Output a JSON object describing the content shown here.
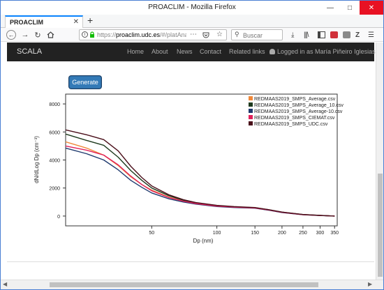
{
  "browser": {
    "window_title": "PROACLIM - Mozilla Firefox",
    "tab_title": "PROACLIM",
    "url_domain": "proaclim.udc.es",
    "url_prefix": "https://",
    "url_path": "/#/platAnalizar/",
    "search_placeholder": "Buscar"
  },
  "site": {
    "brand": "SCALA",
    "nav": [
      "Home",
      "About",
      "News",
      "Contact",
      "Related links"
    ],
    "user_label": "Logged in as María Piñeiro Iglesias"
  },
  "generate_label": "Generate",
  "chart_data": {
    "type": "line",
    "xlabel": "Dp (nm)",
    "ylabel": "dN/dLog Dp (cm⁻³)",
    "x_scale": "log",
    "x_ticks": [
      50,
      100,
      150,
      200,
      250,
      300,
      350
    ],
    "xlim": [
      20,
      360
    ],
    "y_ticks": [
      0,
      2000,
      4000,
      6000,
      8000
    ],
    "ylim": [
      -700,
      8700
    ],
    "grid": false,
    "legend_position": "top-right",
    "x": [
      20,
      25,
      30,
      35,
      40,
      45,
      50,
      60,
      70,
      80,
      100,
      120,
      150,
      175,
      200,
      250,
      300,
      350
    ],
    "series": [
      {
        "name": "REDMAAS2019_SMPS_Average.csv",
        "color": "#f0883a",
        "values": [
          5300,
          4850,
          4350,
          3600,
          2800,
          2250,
          1850,
          1350,
          1080,
          900,
          720,
          640,
          580,
          420,
          260,
          100,
          40,
          0
        ]
      },
      {
        "name": "REDMAAS2019_SMPS_Average_10.csv",
        "color": "#1e3a1e",
        "values": [
          5850,
          5400,
          5050,
          4200,
          3250,
          2550,
          2000,
          1450,
          1130,
          930,
          740,
          660,
          600,
          440,
          280,
          110,
          45,
          0
        ]
      },
      {
        "name": "REDMAAS2019_SMPS_Average-10.csv",
        "color": "#1f3a6e",
        "values": [
          4850,
          4450,
          4000,
          3300,
          2550,
          2050,
          1650,
          1230,
          1000,
          850,
          680,
          610,
          560,
          410,
          250,
          95,
          35,
          0
        ]
      },
      {
        "name": "REDMAAS2019_SMPS_CIEMAT.csv",
        "color": "#e0205a",
        "values": [
          5000,
          4700,
          4350,
          3650,
          2850,
          2250,
          1800,
          1320,
          1060,
          890,
          710,
          640,
          580,
          430,
          270,
          100,
          40,
          0
        ]
      },
      {
        "name": "REDMAAS2019_SMPS_UDC.csv",
        "color": "#4a0f1a",
        "values": [
          6150,
          5800,
          5450,
          4650,
          3550,
          2750,
          2150,
          1520,
          1170,
          960,
          760,
          680,
          610,
          450,
          285,
          110,
          45,
          0
        ]
      }
    ]
  }
}
